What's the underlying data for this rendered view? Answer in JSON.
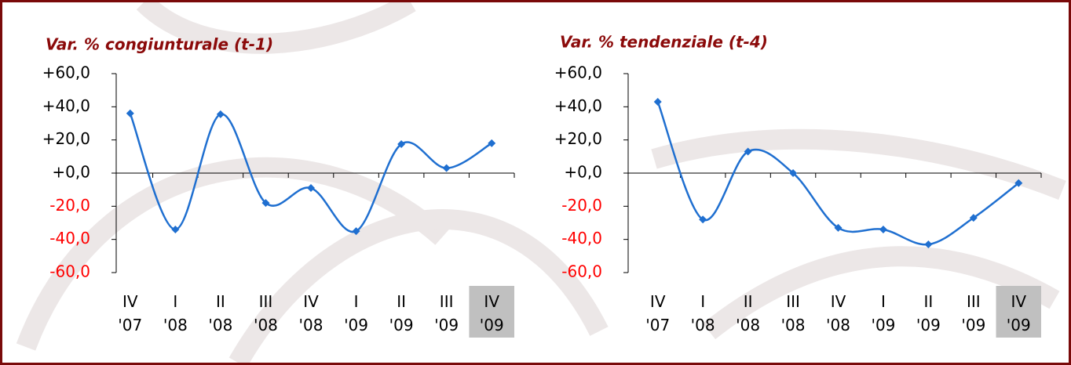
{
  "chart_data": [
    {
      "type": "line",
      "title": "Var. % congiunturale (t-1)",
      "categories": [
        "IV\n'07",
        "I\n'08",
        "II\n'08",
        "III\n'08",
        "IV\n'08",
        "I\n'09",
        "II\n'09",
        "III\n'09",
        "IV\n'09"
      ],
      "series": [
        {
          "color": "#1f6fd0",
          "values": [
            36,
            -34,
            35.5,
            -18,
            -9,
            -35,
            17.5,
            3,
            18
          ]
        }
      ],
      "ylim": [
        -60,
        60
      ],
      "yticks": [
        {
          "value": -60,
          "label": "-60,0"
        },
        {
          "value": -40,
          "label": "-40,0"
        },
        {
          "value": -20,
          "label": "-20,0"
        },
        {
          "value": 0,
          "label": "+0,0"
        },
        {
          "value": 20,
          "label": "+20,0"
        },
        {
          "value": 40,
          "label": "+40,0"
        },
        {
          "value": 60,
          "label": "+60,0"
        }
      ],
      "negative_tick_color": "#ff0000",
      "smooth": true,
      "grid": false,
      "highlighted_category": 8,
      "highlight_color": "#c0c0c0"
    },
    {
      "type": "line",
      "title": "Var. % tendenziale (t-4)",
      "categories": [
        "IV\n'07",
        "I\n'08",
        "II\n'08",
        "III\n'08",
        "IV\n'08",
        "I\n'09",
        "II\n'09",
        "III\n'09",
        "IV\n'09"
      ],
      "series": [
        {
          "color": "#1f6fd0",
          "values": [
            43,
            -28,
            13,
            0,
            -33,
            -34,
            -43,
            -27,
            -6
          ]
        }
      ],
      "ylim": [
        -60,
        60
      ],
      "yticks": [
        {
          "value": -60,
          "label": "-60,0"
        },
        {
          "value": -40,
          "label": "-40,0"
        },
        {
          "value": -20,
          "label": "-20,0"
        },
        {
          "value": 0,
          "label": "+0,0"
        },
        {
          "value": 20,
          "label": "+20,0"
        },
        {
          "value": 40,
          "label": "+40,0"
        },
        {
          "value": 60,
          "label": "+60,0"
        }
      ],
      "negative_tick_color": "#ff0000",
      "smooth": true,
      "grid": false,
      "highlighted_category": 8,
      "highlight_color": "#c0c0c0"
    }
  ]
}
